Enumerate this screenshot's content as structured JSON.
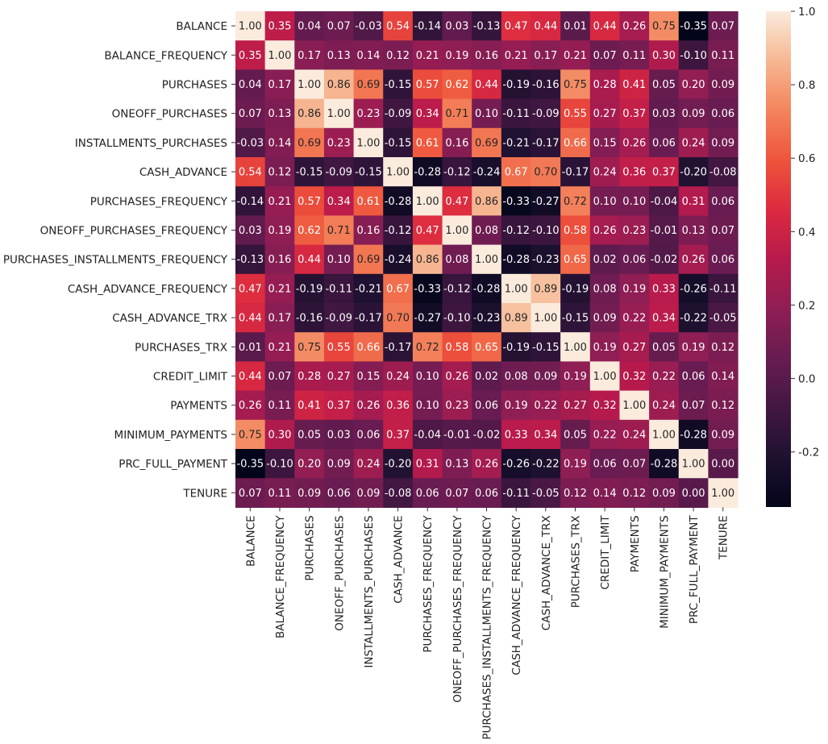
{
  "chart_data": {
    "type": "heatmap",
    "title": "",
    "xlabel": "",
    "ylabel": "",
    "labels": [
      "BALANCE",
      "BALANCE_FREQUENCY",
      "PURCHASES",
      "ONEOFF_PURCHASES",
      "INSTALLMENTS_PURCHASES",
      "CASH_ADVANCE",
      "PURCHASES_FREQUENCY",
      "ONEOFF_PURCHASES_FREQUENCY",
      "PURCHASES_INSTALLMENTS_FREQUENCY",
      "CASH_ADVANCE_FREQUENCY",
      "CASH_ADVANCE_TRX",
      "PURCHASES_TRX",
      "CREDIT_LIMIT",
      "PAYMENTS",
      "MINIMUM_PAYMENTS",
      "PRC_FULL_PAYMENT",
      "TENURE"
    ],
    "values": [
      [
        1.0,
        0.35,
        0.04,
        0.07,
        -0.03,
        0.54,
        -0.14,
        0.03,
        -0.13,
        0.47,
        0.44,
        0.01,
        0.44,
        0.26,
        0.75,
        -0.35,
        0.07
      ],
      [
        0.35,
        1.0,
        0.17,
        0.13,
        0.14,
        0.12,
        0.21,
        0.19,
        0.16,
        0.21,
        0.17,
        0.21,
        0.07,
        0.11,
        0.3,
        -0.1,
        0.11
      ],
      [
        0.04,
        0.17,
        1.0,
        0.86,
        0.69,
        -0.15,
        0.57,
        0.62,
        0.44,
        -0.19,
        -0.16,
        0.75,
        0.28,
        0.41,
        0.05,
        0.2,
        0.09
      ],
      [
        0.07,
        0.13,
        0.86,
        1.0,
        0.23,
        -0.09,
        0.34,
        0.71,
        0.1,
        -0.11,
        -0.09,
        0.55,
        0.27,
        0.37,
        0.03,
        0.09,
        0.06
      ],
      [
        -0.03,
        0.14,
        0.69,
        0.23,
        1.0,
        -0.15,
        0.61,
        0.16,
        0.69,
        -0.21,
        -0.17,
        0.66,
        0.15,
        0.26,
        0.06,
        0.24,
        0.09
      ],
      [
        0.54,
        0.12,
        -0.15,
        -0.09,
        -0.15,
        1.0,
        -0.28,
        -0.12,
        -0.24,
        0.67,
        0.7,
        -0.17,
        0.24,
        0.36,
        0.37,
        -0.2,
        -0.08
      ],
      [
        -0.14,
        0.21,
        0.57,
        0.34,
        0.61,
        -0.28,
        1.0,
        0.47,
        0.86,
        -0.33,
        -0.27,
        0.72,
        0.1,
        0.1,
        -0.04,
        0.31,
        0.06
      ],
      [
        0.03,
        0.19,
        0.62,
        0.71,
        0.16,
        -0.12,
        0.47,
        1.0,
        0.08,
        -0.12,
        -0.1,
        0.58,
        0.26,
        0.23,
        -0.01,
        0.13,
        0.07
      ],
      [
        -0.13,
        0.16,
        0.44,
        0.1,
        0.69,
        -0.24,
        0.86,
        0.08,
        1.0,
        -0.28,
        -0.23,
        0.65,
        0.02,
        0.06,
        -0.02,
        0.26,
        0.06
      ],
      [
        0.47,
        0.21,
        -0.19,
        -0.11,
        -0.21,
        0.67,
        -0.33,
        -0.12,
        -0.28,
        1.0,
        0.89,
        -0.19,
        0.08,
        0.19,
        0.33,
        -0.26,
        -0.11
      ],
      [
        0.44,
        0.17,
        -0.16,
        -0.09,
        -0.17,
        0.7,
        -0.27,
        -0.1,
        -0.23,
        0.89,
        1.0,
        -0.15,
        0.09,
        0.22,
        0.34,
        -0.22,
        -0.05
      ],
      [
        0.01,
        0.21,
        0.75,
        0.55,
        0.66,
        -0.17,
        0.72,
        0.58,
        0.65,
        -0.19,
        -0.15,
        1.0,
        0.19,
        0.27,
        0.05,
        0.19,
        0.12
      ],
      [
        0.44,
        0.07,
        0.28,
        0.27,
        0.15,
        0.24,
        0.1,
        0.26,
        0.02,
        0.08,
        0.09,
        0.19,
        1.0,
        0.32,
        0.22,
        0.06,
        0.14
      ],
      [
        0.26,
        0.11,
        0.41,
        0.37,
        0.26,
        0.36,
        0.1,
        0.23,
        0.06,
        0.19,
        0.22,
        0.27,
        0.32,
        1.0,
        0.24,
        0.07,
        0.12
      ],
      [
        0.75,
        0.3,
        0.05,
        0.03,
        0.06,
        0.37,
        -0.04,
        -0.01,
        -0.02,
        0.33,
        0.34,
        0.05,
        0.22,
        0.24,
        1.0,
        -0.28,
        0.09
      ],
      [
        -0.35,
        -0.1,
        0.2,
        0.09,
        0.24,
        -0.2,
        0.31,
        0.13,
        0.26,
        -0.26,
        -0.22,
        0.19,
        0.06,
        0.07,
        -0.28,
        1.0,
        -0.0
      ],
      [
        0.07,
        0.11,
        0.09,
        0.06,
        0.09,
        -0.08,
        0.06,
        0.07,
        0.06,
        -0.11,
        -0.05,
        0.12,
        0.14,
        0.12,
        0.09,
        -0.0,
        1.0
      ]
    ],
    "value_format": "2 decimals",
    "colormap": "rocket",
    "vmin": -0.35,
    "vmax": 1.0,
    "colorbar": {
      "ticks": [
        -0.2,
        0.0,
        0.2,
        0.4,
        0.6,
        0.8,
        1.0
      ],
      "tick_labels": [
        "-0.2",
        "0.0",
        "0.2",
        "0.4",
        "0.6",
        "0.8",
        "1.0"
      ]
    },
    "grid": false,
    "legend": "colorbar-right"
  }
}
